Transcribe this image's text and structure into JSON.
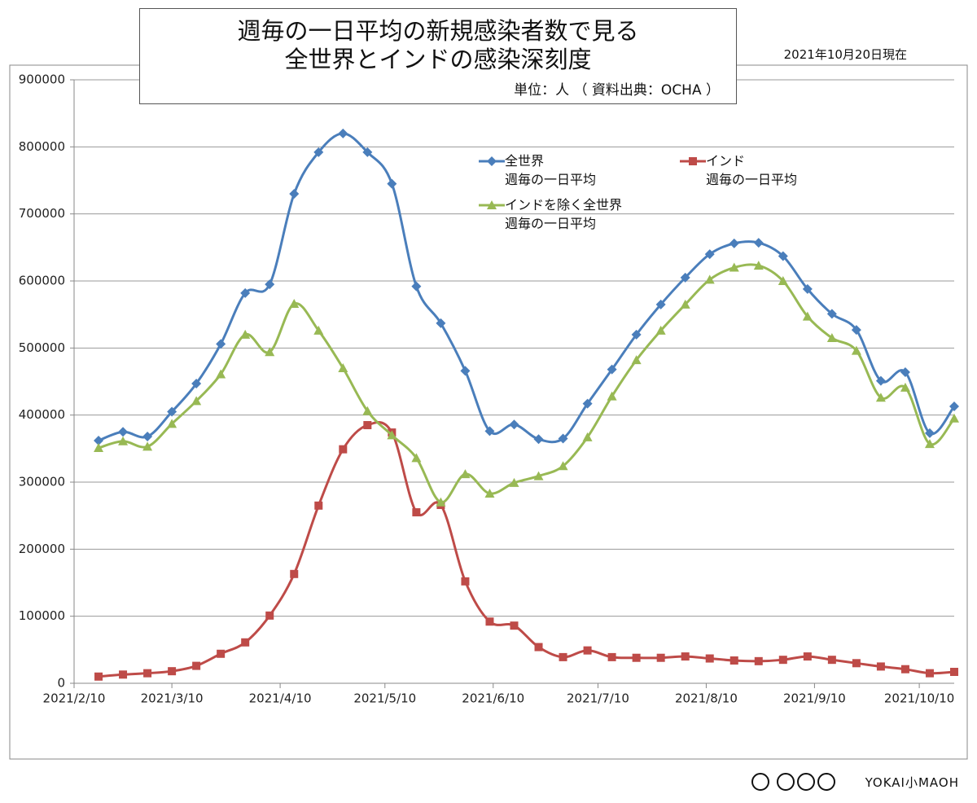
{
  "chart_data": {
    "type": "line",
    "title": "週毎の一日平均の新規感染者数で見る\n全世界とインドの感染深刻度",
    "subtitle": "単位：人 （ 資料出典：OCHA ）",
    "annotation": "2021年10月20日現在",
    "footer": "YOKAI小MAOH",
    "x": [
      "2021/2/17",
      "2021/2/24",
      "2021/3/3",
      "2021/3/10",
      "2021/3/17",
      "2021/3/24",
      "2021/3/31",
      "2021/4/7",
      "2021/4/14",
      "2021/4/21",
      "2021/4/28",
      "2021/5/5",
      "2021/5/12",
      "2021/5/19",
      "2021/5/26",
      "2021/6/2",
      "2021/6/9",
      "2021/6/16",
      "2021/6/23",
      "2021/6/30",
      "2021/7/7",
      "2021/7/14",
      "2021/7/21",
      "2021/7/28",
      "2021/8/4",
      "2021/8/11",
      "2021/8/18",
      "2021/8/25",
      "2021/9/1",
      "2021/9/8",
      "2021/9/15",
      "2021/9/22",
      "2021/9/29",
      "2021/10/6",
      "2021/10/13",
      "2021/10/20"
    ],
    "series": [
      {
        "name": "全世界\n週毎の一日平均",
        "color": "#4a7ebb",
        "marker": "diamond",
        "values": [
          362000,
          375000,
          368000,
          405000,
          447000,
          506000,
          582000,
          595000,
          730000,
          792000,
          820000,
          792000,
          745000,
          592000,
          537000,
          466000,
          376000,
          386000,
          364000,
          365000,
          417000,
          468000,
          520000,
          565000,
          605000,
          640000,
          656000,
          657000,
          637000,
          588000,
          551000,
          527000,
          451000,
          464000,
          373000,
          413000
        ]
      },
      {
        "name": "インド\n週毎の一日平均",
        "color": "#be4b48",
        "marker": "square",
        "values": [
          10000,
          13000,
          15000,
          18000,
          26000,
          44000,
          61000,
          101000,
          163000,
          265000,
          349000,
          385000,
          374000,
          255000,
          266000,
          152000,
          92000,
          86000,
          54000,
          39000,
          49000,
          39000,
          38000,
          38000,
          40000,
          37000,
          34000,
          33000,
          35000,
          40000,
          35000,
          30000,
          25000,
          21000,
          15000,
          17000
        ]
      },
      {
        "name": "インドを除く全世界\n週毎の一日平均",
        "color": "#98b954",
        "marker": "triangle",
        "values": [
          351000,
          361000,
          353000,
          387000,
          421000,
          461000,
          520000,
          494000,
          566000,
          526000,
          470000,
          406000,
          370000,
          336000,
          270000,
          312000,
          283000,
          299000,
          309000,
          324000,
          367000,
          428000,
          482000,
          526000,
          565000,
          602000,
          620000,
          623000,
          600000,
          547000,
          515000,
          496000,
          426000,
          441000,
          357000,
          395000
        ]
      }
    ],
    "xlim": [
      "2021/2/10",
      "2021/10/20"
    ],
    "xticks": [
      "2021/2/10",
      "2021/3/10",
      "2021/4/10",
      "2021/5/10",
      "2021/6/10",
      "2021/7/10",
      "2021/8/10",
      "2021/9/10",
      "2021/10/10"
    ],
    "ylim": [
      0,
      900000
    ],
    "yticks": [
      0,
      100000,
      200000,
      300000,
      400000,
      500000,
      600000,
      700000,
      800000,
      900000
    ],
    "grid": true
  }
}
